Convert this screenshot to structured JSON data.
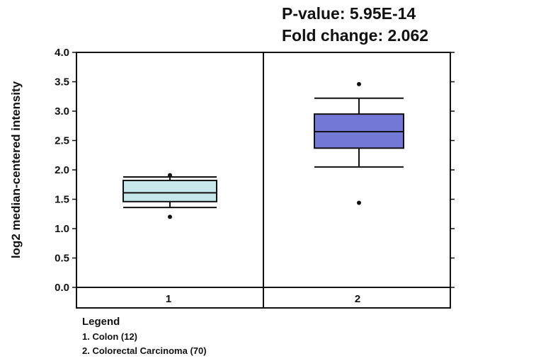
{
  "stats": {
    "p_value": "P-value: 5.95E-14",
    "fold_change": "Fold change: 2.062"
  },
  "legend": {
    "title": "Legend",
    "items": [
      "1. Colon (12)",
      "2. Colorectal Carcinoma (70)"
    ]
  },
  "chart_data": {
    "type": "box",
    "ylabel": "log2 median-centered intensity",
    "ylim": [
      0.0,
      4.0
    ],
    "yticks": [
      "0.0",
      "0.5",
      "1.0",
      "1.5",
      "2.0",
      "2.5",
      "3.0",
      "3.5",
      "4.0"
    ],
    "categories": [
      "1",
      "2"
    ],
    "series": [
      {
        "category": "1",
        "color": "#c5e6ea",
        "q1": 1.46,
        "median": 1.61,
        "q3": 1.82,
        "whisker_low": 1.36,
        "whisker_high": 1.88,
        "outliers": [
          1.2,
          1.91
        ]
      },
      {
        "category": "2",
        "color": "#7478d6",
        "q1": 2.37,
        "median": 2.65,
        "q3": 2.95,
        "whisker_low": 2.05,
        "whisker_high": 3.22,
        "outliers": [
          3.46,
          1.44
        ]
      }
    ]
  }
}
